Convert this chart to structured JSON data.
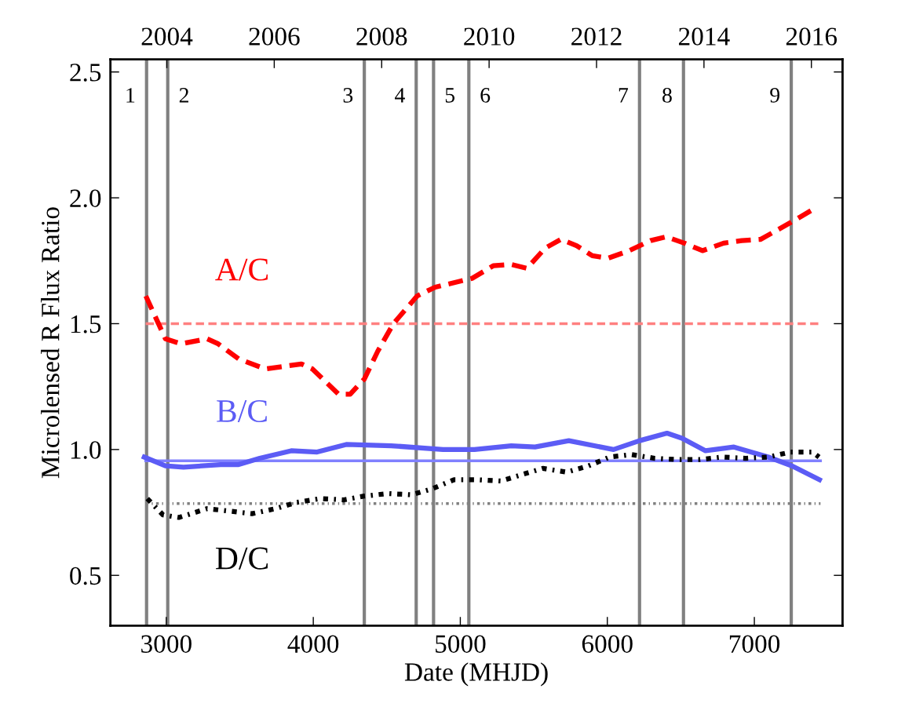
{
  "chart_data": {
    "type": "line",
    "xlabel": "Date (MHJD)",
    "ylabel": "Microlensed R Flux Ratio",
    "xlim": [
      2620,
      7600
    ],
    "xticks": [
      3000,
      4000,
      5000,
      6000,
      7000
    ],
    "x2lim": [
      2002.95,
      2016.58
    ],
    "x2ticks": [
      2004,
      2006,
      2008,
      2010,
      2012,
      2014,
      2016
    ],
    "ylim": [
      0.3,
      2.55
    ],
    "yticks": [
      {
        "value": 0.5,
        "label": "0.5"
      },
      {
        "value": 1.0,
        "label": "1.0"
      },
      {
        "value": 1.5,
        "label": "1.5"
      },
      {
        "value": 2.0,
        "label": "2.0"
      },
      {
        "value": 2.5,
        "label": "2.5"
      }
    ],
    "grid": false,
    "series": [
      {
        "name": "A/C",
        "color": "#ff0000",
        "line_style": "dashed",
        "x": [
          2861,
          2994,
          3101,
          3278,
          3353,
          3492,
          3673,
          3919,
          3994,
          4171,
          4251,
          4347,
          4438,
          4545,
          4706,
          4829,
          5080,
          5224,
          5347,
          5454,
          5577,
          5684,
          5791,
          5898,
          6005,
          6149,
          6294,
          6401,
          6524,
          6647,
          6791,
          6914,
          7043,
          7165,
          7272,
          7416
        ],
        "values": [
          1.61,
          1.44,
          1.42,
          1.44,
          1.42,
          1.36,
          1.32,
          1.34,
          1.32,
          1.22,
          1.22,
          1.28,
          1.39,
          1.5,
          1.61,
          1.645,
          1.68,
          1.73,
          1.735,
          1.72,
          1.8,
          1.835,
          1.81,
          1.77,
          1.76,
          1.79,
          1.83,
          1.845,
          1.82,
          1.79,
          1.82,
          1.83,
          1.835,
          1.875,
          1.91,
          1.96
        ]
      },
      {
        "name": "B/C",
        "color": "#5c5cf5",
        "line_style": "solid",
        "x": [
          2850,
          2994,
          3117,
          3369,
          3492,
          3636,
          3850,
          4026,
          4224,
          4529,
          4882,
          5096,
          5347,
          5508,
          5738,
          6042,
          6219,
          6406,
          6508,
          6668,
          6861,
          7096,
          7256,
          7443
        ],
        "values": [
          0.97,
          0.935,
          0.93,
          0.94,
          0.94,
          0.965,
          0.995,
          0.99,
          1.02,
          1.015,
          1.0,
          1.0,
          1.015,
          1.01,
          1.035,
          1.0,
          1.035,
          1.065,
          1.045,
          0.995,
          1.01,
          0.97,
          0.935,
          0.88
        ]
      },
      {
        "name": "D/C",
        "color": "#000000",
        "line_style": "dotted",
        "x": [
          2871,
          2978,
          3085,
          3278,
          3438,
          3583,
          3743,
          3887,
          4048,
          4208,
          4347,
          4508,
          4668,
          4813,
          4957,
          5117,
          5278,
          5417,
          5561,
          5722,
          5871,
          6016,
          6165,
          6321,
          6481,
          6631,
          6781,
          6941,
          7096,
          7246,
          7395,
          7440
        ],
        "values": [
          0.805,
          0.74,
          0.73,
          0.765,
          0.755,
          0.745,
          0.765,
          0.79,
          0.805,
          0.8,
          0.815,
          0.825,
          0.82,
          0.845,
          0.88,
          0.88,
          0.875,
          0.9,
          0.925,
          0.91,
          0.935,
          0.97,
          0.98,
          0.965,
          0.96,
          0.96,
          0.97,
          0.965,
          0.97,
          0.99,
          0.99,
          0.97
        ]
      },
      {
        "color": "#ff8080",
        "line_style": "dashed",
        "x": [
          2860,
          7450
        ],
        "values": [
          1.5,
          1.5
        ]
      },
      {
        "color": "#8080ff",
        "line_style": "solid",
        "x": [
          2860,
          7450
        ],
        "values": [
          0.955,
          0.955
        ]
      },
      {
        "color": "#808080",
        "line_style": "dotted",
        "x": [
          2860,
          7450
        ],
        "values": [
          0.785,
          0.785
        ]
      }
    ],
    "ref_lines": [
      {
        "axis": "x",
        "value": 2866,
        "color": "#808080"
      },
      {
        "axis": "x",
        "value": 3010,
        "color": "#808080"
      },
      {
        "axis": "x",
        "value": 4347,
        "color": "#808080"
      },
      {
        "axis": "x",
        "value": 4700,
        "color": "#808080"
      },
      {
        "axis": "x",
        "value": 4818,
        "color": "#808080"
      },
      {
        "axis": "x",
        "value": 5058,
        "color": "#808080"
      },
      {
        "axis": "x",
        "value": 6219,
        "color": "#808080"
      },
      {
        "axis": "x",
        "value": 6518,
        "color": "#808080"
      },
      {
        "axis": "x",
        "value": 7251,
        "color": "#808080"
      }
    ],
    "annotations": [
      {
        "text": "1",
        "x": 2866,
        "y": 2.4
      },
      {
        "text": "2",
        "x": 3010,
        "y": 2.4
      },
      {
        "text": "3",
        "x": 4347,
        "y": 2.4
      },
      {
        "text": "4",
        "x": 4700,
        "y": 2.4
      },
      {
        "text": "5",
        "x": 4818,
        "y": 2.4
      },
      {
        "text": "6",
        "x": 5058,
        "y": 2.4
      },
      {
        "text": "7",
        "x": 6219,
        "y": 2.4
      },
      {
        "text": "8",
        "x": 6518,
        "y": 2.4
      },
      {
        "text": "9",
        "x": 7251,
        "y": 2.4
      }
    ]
  }
}
